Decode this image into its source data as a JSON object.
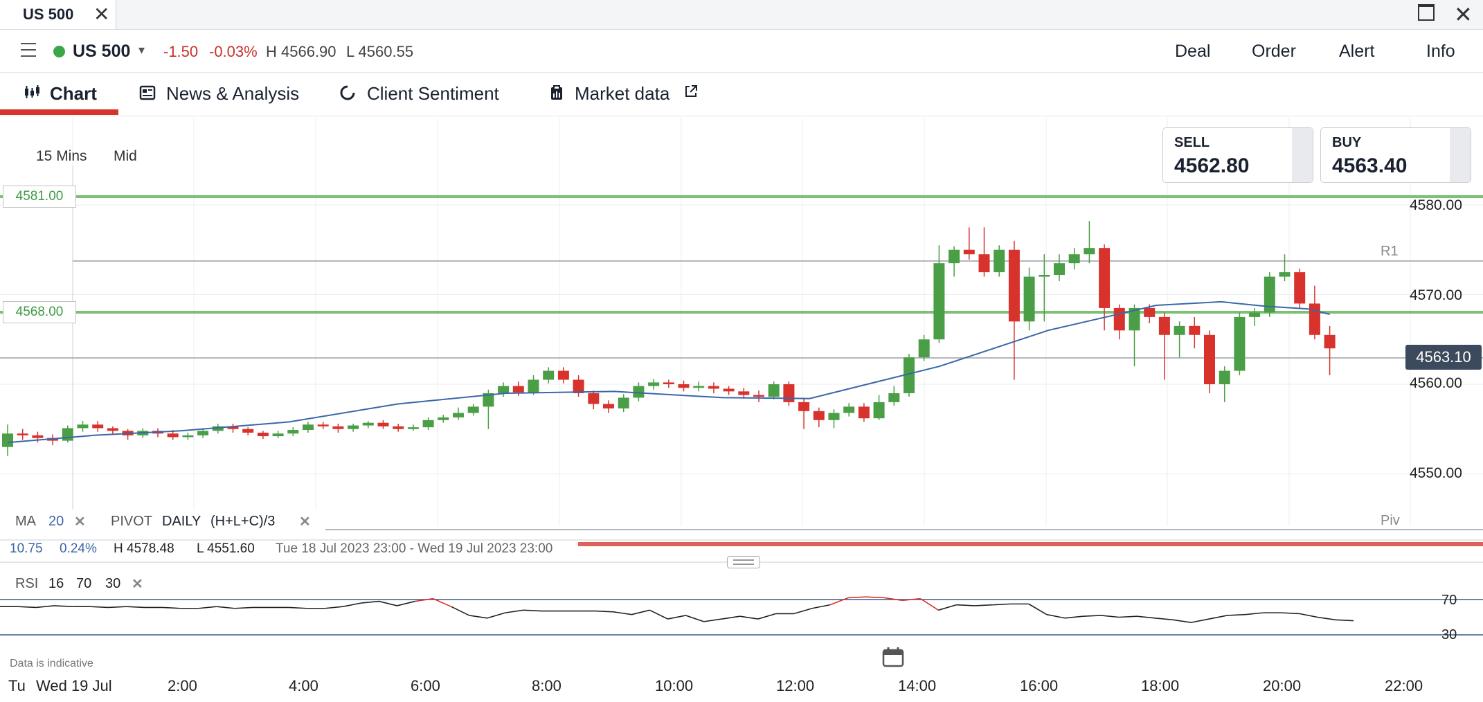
{
  "window": {
    "tab_title": "US 500",
    "tab_close": "✕",
    "close": "✕"
  },
  "instrument": {
    "name": "US 500",
    "change": "-1.50",
    "change_pct": "-0.03%",
    "high": "H 4566.90",
    "low": "L 4560.55",
    "status_color": "#3aa84a"
  },
  "actions": [
    "Deal",
    "Order",
    "Alert",
    "Info"
  ],
  "nav": {
    "tabs": [
      {
        "label": "Chart",
        "icon": "candlestick-icon",
        "active": true
      },
      {
        "label": "News & Analysis",
        "icon": "newspaper-icon"
      },
      {
        "label": "Client Sentiment",
        "icon": "sentiment-ring-icon"
      },
      {
        "label": "Market data",
        "icon": "clipboard-icon",
        "external": "external-link-icon"
      }
    ]
  },
  "chart_controls": {
    "interval": "15 Mins",
    "price_type": "Mid"
  },
  "quotes": {
    "sell_label": "SELL",
    "sell_price": "4562.80",
    "buy_label": "BUY",
    "buy_price": "4563.40"
  },
  "levels": {
    "upper": "4581.00",
    "lower": "4568.00",
    "current": "4563.10"
  },
  "pivot_labels": {
    "r1": "R1",
    "piv": "Piv"
  },
  "indicators": {
    "ma_label": "MA",
    "ma_period": "20",
    "pivot_label": "PIVOT",
    "pivot_period": "DAILY",
    "pivot_formula": "(H+L+C)/3",
    "close": "✕"
  },
  "summary": {
    "change": "10.75",
    "change_pct": "0.24%",
    "high": "H 4578.48",
    "low": "L 4551.60",
    "range": "Tue 18 Jul 2023 23:00 - Wed 19 Jul 2023 23:00"
  },
  "rsi": {
    "label": "RSI",
    "period": "16",
    "upper": "70",
    "lower": "30",
    "close": "✕"
  },
  "footer": {
    "disclaimer": "Data is indicative"
  },
  "x_axis": {
    "start_day": "Tu",
    "date": "Wed 19 Jul",
    "ticks": [
      "2:00",
      "4:00",
      "6:00",
      "8:00",
      "10:00",
      "12:00",
      "14:00",
      "16:00",
      "18:00",
      "20:00",
      "22:00"
    ]
  },
  "colors": {
    "up": "#4a9e45",
    "down": "#d8322d",
    "ma_line": "#3b66a8",
    "level_line": "#7bc171",
    "accent": "#d8322d"
  },
  "chart_data": {
    "type": "candlestick",
    "y_ticks": [
      "4580.00",
      "4570.00",
      "4560.00",
      "4550.00"
    ],
    "ylim": [
      4541,
      4584
    ],
    "candles": [
      [
        4553.0,
        4554.5,
        4552.0,
        4555.5
      ],
      [
        4554.5,
        4554.3,
        4553.8,
        4555.0
      ],
      [
        4554.3,
        4554.0,
        4553.5,
        4554.7
      ],
      [
        4554.0,
        4553.7,
        4553.2,
        4554.4
      ],
      [
        4553.7,
        4555.1,
        4553.5,
        4555.4
      ],
      [
        4555.1,
        4555.5,
        4554.7,
        4555.9
      ],
      [
        4555.5,
        4555.1,
        4554.7,
        4555.9
      ],
      [
        4555.1,
        4554.8,
        4554.4,
        4555.3
      ],
      [
        4554.8,
        4554.3,
        4553.8,
        4555.0
      ],
      [
        4554.3,
        4554.8,
        4554.0,
        4555.1
      ],
      [
        4554.8,
        4554.5,
        4554.1,
        4555.1
      ],
      [
        4554.5,
        4554.1,
        4553.8,
        4554.9
      ],
      [
        4554.1,
        4554.3,
        4553.8,
        4554.6
      ],
      [
        4554.3,
        4554.8,
        4554.0,
        4555.1
      ],
      [
        4554.8,
        4555.3,
        4554.5,
        4555.6
      ],
      [
        4555.3,
        4555.0,
        4554.6,
        4555.6
      ],
      [
        4555.0,
        4554.6,
        4554.3,
        4555.2
      ],
      [
        4554.6,
        4554.2,
        4553.9,
        4554.8
      ],
      [
        4554.2,
        4554.5,
        4554.0,
        4554.8
      ],
      [
        4554.5,
        4554.9,
        4554.2,
        4555.2
      ],
      [
        4554.9,
        4555.5,
        4554.6,
        4555.8
      ],
      [
        4555.5,
        4555.3,
        4555.0,
        4555.8
      ],
      [
        4555.3,
        4555.0,
        4554.6,
        4555.6
      ],
      [
        4555.0,
        4555.4,
        4554.7,
        4555.6
      ],
      [
        4555.4,
        4555.7,
        4555.1,
        4555.9
      ],
      [
        4555.7,
        4555.3,
        4555.0,
        4556.0
      ],
      [
        4555.3,
        4555.0,
        4554.7,
        4555.6
      ],
      [
        4555.0,
        4555.2,
        4554.8,
        4555.5
      ],
      [
        4555.2,
        4556.0,
        4554.9,
        4556.3
      ],
      [
        4556.0,
        4556.3,
        4555.7,
        4556.6
      ],
      [
        4556.3,
        4556.8,
        4556.0,
        4557.4
      ],
      [
        4556.8,
        4557.5,
        4556.5,
        4557.8
      ],
      [
        4557.5,
        4559.0,
        4555.0,
        4559.4
      ],
      [
        4559.0,
        4559.8,
        4558.6,
        4560.2
      ],
      [
        4559.8,
        4559.1,
        4558.7,
        4560.3
      ],
      [
        4559.1,
        4560.5,
        4558.8,
        4561.0
      ],
      [
        4560.5,
        4561.5,
        4560.1,
        4561.9
      ],
      [
        4561.5,
        4560.5,
        4560.1,
        4561.9
      ],
      [
        4560.5,
        4559.0,
        4558.6,
        4561.0
      ],
      [
        4559.0,
        4557.8,
        4557.2,
        4559.3
      ],
      [
        4557.8,
        4557.3,
        4556.8,
        4558.2
      ],
      [
        4557.3,
        4558.5,
        4556.9,
        4558.9
      ],
      [
        4558.5,
        4559.8,
        4558.1,
        4560.2
      ],
      [
        4559.8,
        4560.2,
        4559.4,
        4560.6
      ],
      [
        4560.2,
        4560.0,
        4559.6,
        4560.5
      ],
      [
        4560.0,
        4559.6,
        4559.2,
        4560.4
      ],
      [
        4559.6,
        4559.8,
        4559.2,
        4560.3
      ],
      [
        4559.8,
        4559.5,
        4559.0,
        4560.2
      ],
      [
        4559.5,
        4559.2,
        4558.8,
        4559.8
      ],
      [
        4559.2,
        4558.8,
        4558.4,
        4559.6
      ],
      [
        4558.8,
        4558.6,
        4558.0,
        4559.3
      ],
      [
        4558.6,
        4560.0,
        4558.3,
        4560.3
      ],
      [
        4560.0,
        4558.0,
        4557.6,
        4560.3
      ],
      [
        4558.0,
        4557.0,
        4555.0,
        4558.5
      ],
      [
        4557.0,
        4556.0,
        4555.2,
        4557.4
      ],
      [
        4556.0,
        4556.8,
        4555.1,
        4557.2
      ],
      [
        4556.8,
        4557.5,
        4556.4,
        4557.9
      ],
      [
        4557.5,
        4556.2,
        4555.8,
        4557.9
      ],
      [
        4556.2,
        4558.0,
        4556.0,
        4558.8
      ],
      [
        4558.0,
        4559.0,
        4557.6,
        4559.8
      ],
      [
        4559.0,
        4563.0,
        4558.6,
        4563.4
      ],
      [
        4563.0,
        4565.0,
        4562.6,
        4565.5
      ],
      [
        4565.0,
        4573.5,
        4564.6,
        4575.5
      ],
      [
        4573.5,
        4575.0,
        4572.0,
        4575.4
      ],
      [
        4575.0,
        4574.5,
        4573.9,
        4577.5
      ],
      [
        4574.5,
        4572.5,
        4572.0,
        4577.5
      ],
      [
        4572.5,
        4575.0,
        4572.0,
        4575.5
      ],
      [
        4575.0,
        4567.0,
        4560.5,
        4576.0
      ],
      [
        4567.0,
        4572.0,
        4566.0,
        4573.0
      ],
      [
        4572.0,
        4572.2,
        4567.0,
        4574.5
      ],
      [
        4572.2,
        4573.5,
        4571.5,
        4574.5
      ],
      [
        4573.5,
        4574.5,
        4572.8,
        4575.2
      ],
      [
        4574.5,
        4575.2,
        4573.5,
        4578.2
      ],
      [
        4575.2,
        4568.5,
        4566.0,
        4575.6
      ],
      [
        4568.5,
        4566.0,
        4565.0,
        4568.9
      ],
      [
        4566.0,
        4568.5,
        4562.0,
        4568.9
      ],
      [
        4568.5,
        4567.5,
        4566.8,
        4568.9
      ],
      [
        4567.5,
        4565.5,
        4560.5,
        4568.0
      ],
      [
        4565.5,
        4566.5,
        4563.0,
        4567.0
      ],
      [
        4566.5,
        4565.5,
        4564.0,
        4567.5
      ],
      [
        4565.5,
        4560.0,
        4559.0,
        4566.0
      ],
      [
        4560.0,
        4561.5,
        4558.0,
        4562.0
      ],
      [
        4561.5,
        4567.5,
        4561.0,
        4568.0
      ],
      [
        4567.5,
        4568.0,
        4566.5,
        4568.5
      ],
      [
        4568.0,
        4572.0,
        4567.5,
        4572.5
      ],
      [
        4572.0,
        4572.5,
        4571.5,
        4574.5
      ],
      [
        4572.5,
        4569.0,
        4568.5,
        4572.9
      ],
      [
        4569.0,
        4565.5,
        4565.0,
        4571.0
      ],
      [
        4565.5,
        4564.0,
        4561.0,
        4566.5
      ]
    ],
    "ma": [
      [
        4552,
        4553.5
      ],
      [
        4556,
        4554.3
      ],
      [
        4560,
        4554.8
      ],
      [
        4565,
        4555.8
      ],
      [
        4570,
        4557.8
      ],
      [
        4575,
        4559.0
      ],
      [
        4580,
        4559.2
      ],
      [
        4585,
        4558.5
      ],
      [
        4589,
        4558.4
      ],
      [
        4595,
        4562.0
      ],
      [
        4600,
        4566.0
      ],
      [
        4605,
        4568.8
      ],
      [
        4608,
        4569.2
      ],
      [
        4610,
        4568.7
      ],
      [
        4612,
        4568.4
      ],
      [
        4613,
        4567.8
      ]
    ],
    "pivots": {
      "r1": 4573.7,
      "piv": 4549.7
    },
    "rsi": [
      62,
      62,
      61,
      63,
      62,
      62,
      61,
      62,
      61,
      61,
      60,
      60,
      62,
      60,
      61,
      61,
      61,
      60,
      60,
      62,
      66,
      68,
      63,
      68,
      71,
      62,
      52,
      49,
      55,
      58,
      57,
      57,
      57,
      57,
      56,
      53,
      58,
      48,
      52,
      45,
      48,
      51,
      48,
      54,
      54,
      60,
      64,
      72,
      73,
      72,
      69,
      71,
      58,
      64,
      63,
      64,
      65,
      65,
      53,
      49,
      51,
      52,
      50,
      51,
      49,
      47,
      44,
      48,
      52,
      53,
      55,
      55,
      54,
      50,
      47,
      46
    ]
  }
}
